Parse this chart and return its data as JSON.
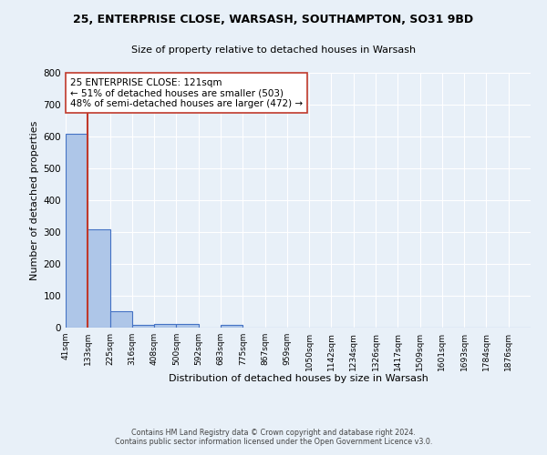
{
  "title": "25, ENTERPRISE CLOSE, WARSASH, SOUTHAMPTON, SO31 9BD",
  "subtitle": "Size of property relative to detached houses in Warsash",
  "xlabel": "Distribution of detached houses by size in Warsash",
  "ylabel": "Number of detached properties",
  "footer_line1": "Contains HM Land Registry data © Crown copyright and database right 2024.",
  "footer_line2": "Contains public sector information licensed under the Open Government Licence v3.0.",
  "bin_labels": [
    "41sqm",
    "133sqm",
    "225sqm",
    "316sqm",
    "408sqm",
    "500sqm",
    "592sqm",
    "683sqm",
    "775sqm",
    "867sqm",
    "959sqm",
    "1050sqm",
    "1142sqm",
    "1234sqm",
    "1326sqm",
    "1417sqm",
    "1509sqm",
    "1601sqm",
    "1693sqm",
    "1784sqm",
    "1876sqm"
  ],
  "bin_values": [
    608,
    310,
    52,
    10,
    12,
    12,
    1,
    8,
    0,
    0,
    0,
    0,
    0,
    0,
    0,
    0,
    0,
    0,
    0,
    0,
    0
  ],
  "bar_color": "#aec6e8",
  "bar_edge_color": "#4472c4",
  "bg_color": "#e8f0f8",
  "grid_color": "#ffffff",
  "vline_x": 1,
  "vline_color": "#c0392b",
  "annotation_line1": "25 ENTERPRISE CLOSE: 121sqm",
  "annotation_line2": "← 51% of detached houses are smaller (503)",
  "annotation_line3": "48% of semi-detached houses are larger (472) →",
  "annotation_box_color": "#ffffff",
  "annotation_box_edge": "#c0392b",
  "ylim": [
    0,
    800
  ],
  "yticks": [
    0,
    100,
    200,
    300,
    400,
    500,
    600,
    700,
    800
  ]
}
